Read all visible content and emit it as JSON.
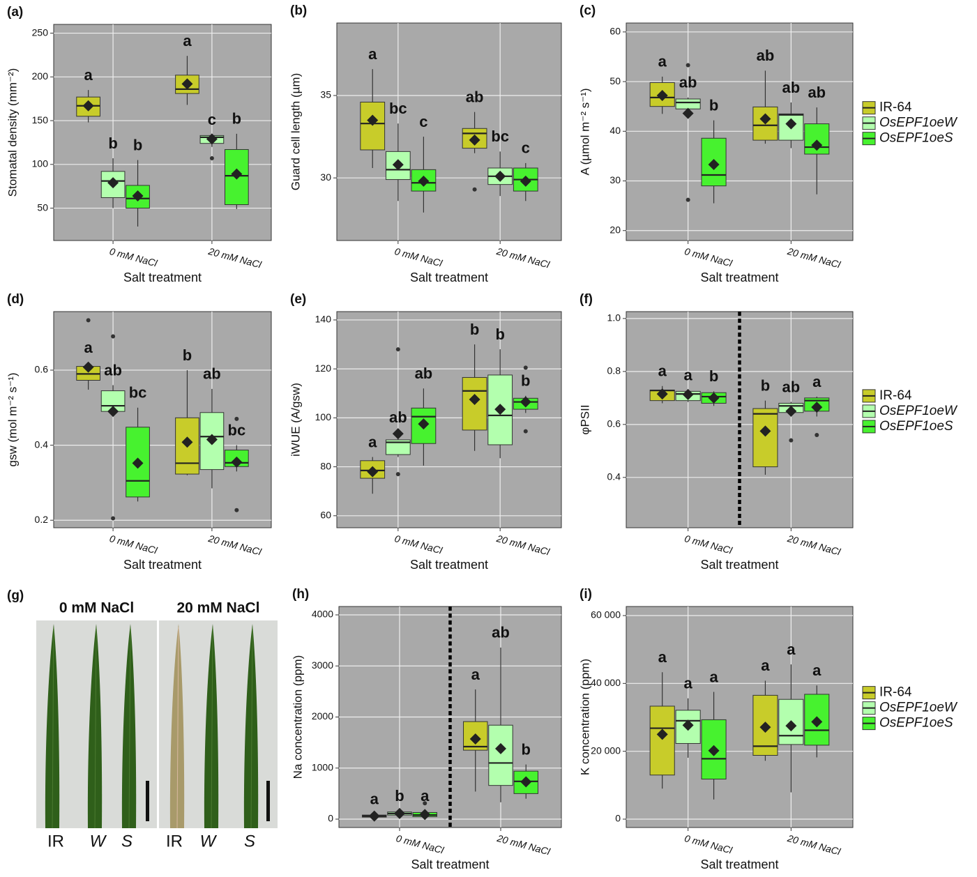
{
  "chart_data": [
    {
      "type": "box",
      "panel": "(a)",
      "ylabel": "Stomatal density (mm⁻²)",
      "xlabel": "Salt treatment",
      "categories": [
        "0 mM NaCl",
        "20 mM NaCl"
      ],
      "ylim": [
        13,
        260
      ],
      "yticks": [
        50,
        100,
        150,
        200,
        250
      ],
      "grid": true,
      "series": [
        {
          "color": "#c8cc2a",
          "values": [
            {
              "low": 148,
              "q1": 155,
              "median": 167,
              "q3": 177,
              "high": 185,
              "mean": 167,
              "label": "a"
            },
            {
              "low": 168,
              "q1": 181,
              "median": 186,
              "q3": 202,
              "high": 224,
              "mean": 192,
              "label": "a"
            }
          ]
        },
        {
          "color": "#b3ffae",
          "values": [
            {
              "low": 50,
              "q1": 62,
              "median": 81,
              "q3": 92,
              "high": 107,
              "mean": 79,
              "label": "b"
            },
            {
              "low": 120,
              "q1": 124,
              "median": 131,
              "q3": 133,
              "high": 134,
              "mean": 129,
              "outliers": [
                107
              ],
              "label": "c"
            }
          ]
        },
        {
          "color": "#47f22f",
          "values": [
            {
              "low": 29,
              "q1": 50,
              "median": 61,
              "q3": 76,
              "high": 105,
              "mean": 64,
              "label": "b"
            },
            {
              "low": 49,
              "q1": 54,
              "median": 87,
              "q3": 117,
              "high": 135,
              "mean": 89,
              "label": "b"
            }
          ]
        }
      ]
    },
    {
      "type": "box",
      "panel": "(b)",
      "ylabel": "Guard cell length (µm)",
      "xlabel": "Salt treatment",
      "categories": [
        "0 mM NaCl",
        "20 mM NaCl"
      ],
      "ylim": [
        26.2,
        39.4
      ],
      "yticks": [
        30,
        35
      ],
      "grid": true,
      "series": [
        {
          "color": "#c8cc2a",
          "values": [
            {
              "low": 30.6,
              "q1": 31.7,
              "median": 33.3,
              "q3": 34.6,
              "high": 36.6,
              "mean": 33.5,
              "label": "a"
            },
            {
              "low": 31.5,
              "q1": 31.8,
              "median": 32.7,
              "q3": 33.0,
              "high": 34.0,
              "mean": 32.3,
              "outliers": [
                29.3
              ],
              "label": "ab"
            }
          ]
        },
        {
          "color": "#b3ffae",
          "values": [
            {
              "low": 28.6,
              "q1": 29.9,
              "median": 30.5,
              "q3": 31.6,
              "high": 33.3,
              "mean": 30.8,
              "label": "bc"
            },
            {
              "low": 28.9,
              "q1": 29.6,
              "median": 30.1,
              "q3": 30.6,
              "high": 31.6,
              "mean": 30.1,
              "label": "bc"
            }
          ]
        },
        {
          "color": "#47f22f",
          "values": [
            {
              "low": 27.9,
              "q1": 29.2,
              "median": 29.7,
              "q3": 30.5,
              "high": 32.5,
              "mean": 29.8,
              "label": "c"
            },
            {
              "low": 28.6,
              "q1": 29.2,
              "median": 29.9,
              "q3": 30.6,
              "high": 30.9,
              "mean": 29.8,
              "label": "c"
            }
          ]
        }
      ]
    },
    {
      "type": "box",
      "panel": "(c)",
      "ylabel": "A (µmol m⁻² s⁻¹)",
      "xlabel": "Salt treatment",
      "categories": [
        "0 mM NaCl",
        "20 mM NaCl"
      ],
      "ylim": [
        18,
        61.8
      ],
      "yticks": [
        20,
        30,
        40,
        50,
        60
      ],
      "grid": true,
      "legend": "right",
      "series": [
        {
          "name": "IR-64",
          "color": "#c8cc2a",
          "values": [
            {
              "low": 43.5,
              "q1": 45,
              "median": 46.8,
              "q3": 49.8,
              "high": 51,
              "mean": 47.2,
              "label": "a"
            },
            {
              "low": 37.5,
              "q1": 38.2,
              "median": 41.2,
              "q3": 44.9,
              "high": 52.2,
              "mean": 42.5,
              "label": "ab"
            }
          ]
        },
        {
          "name": "OsEPF1oeW",
          "color": "#b3ffae",
          "values": [
            {
              "low": 43,
              "q1": 44.5,
              "median": 45.8,
              "q3": 46.5,
              "high": 46.8,
              "mean": 43.6,
              "outliers": [
                53.3,
                26.2
              ],
              "label": "ab"
            },
            {
              "low": 36.6,
              "q1": 38.2,
              "median": 43.3,
              "q3": 43.5,
              "high": 45.8,
              "mean": 41.5,
              "label": "ab"
            }
          ]
        },
        {
          "name": "OsEPF1oeS",
          "color": "#47f22f",
          "values": [
            {
              "low": 25.5,
              "q1": 29,
              "median": 31.2,
              "q3": 38.6,
              "high": 42.2,
              "mean": 33.3,
              "label": "b"
            },
            {
              "low": 27.3,
              "q1": 35.4,
              "median": 36.8,
              "q3": 41.5,
              "high": 44.8,
              "mean": 37.2,
              "label": "ab"
            }
          ]
        }
      ]
    },
    {
      "type": "box",
      "panel": "(d)",
      "ylabel": "gsw (mol m⁻² s⁻¹)",
      "xlabel": "Salt treatment",
      "categories": [
        "0 mM NaCl",
        "20 mM NaCl"
      ],
      "ylim": [
        0.18,
        0.756
      ],
      "yticks": [
        0.2,
        0.4,
        0.6
      ],
      "grid": true,
      "series": [
        {
          "color": "#c8cc2a",
          "values": [
            {
              "low": 0.548,
              "q1": 0.573,
              "median": 0.59,
              "q3": 0.61,
              "high": 0.62,
              "mean": 0.608,
              "outliers": [
                0.733
              ],
              "label": "a"
            },
            {
              "low": 0.32,
              "q1": 0.323,
              "median": 0.352,
              "q3": 0.473,
              "high": 0.6,
              "mean": 0.408,
              "label": "b"
            }
          ]
        },
        {
          "color": "#b3ffae",
          "values": [
            {
              "low": 0.485,
              "q1": 0.49,
              "median": 0.505,
              "q3": 0.545,
              "high": 0.56,
              "mean": 0.49,
              "outliers": [
                0.69,
                0.205
              ],
              "label": "ab"
            },
            {
              "low": 0.285,
              "q1": 0.335,
              "median": 0.423,
              "q3": 0.487,
              "high": 0.55,
              "mean": 0.415,
              "label": "ab"
            }
          ]
        },
        {
          "color": "#47f22f",
          "values": [
            {
              "low": 0.25,
              "q1": 0.262,
              "median": 0.305,
              "q3": 0.448,
              "high": 0.5,
              "mean": 0.352,
              "label": "bc"
            },
            {
              "low": 0.33,
              "q1": 0.343,
              "median": 0.353,
              "q3": 0.387,
              "high": 0.4,
              "mean": 0.355,
              "outliers": [
                0.47,
                0.227
              ],
              "label": "bc"
            }
          ]
        }
      ]
    },
    {
      "type": "box",
      "panel": "(e)",
      "ylabel": "iWUE (A/gsw)",
      "xlabel": "Salt treatment",
      "categories": [
        "0 mM NaCl",
        "20 mM NaCl"
      ],
      "ylim": [
        55.1,
        143.4
      ],
      "yticks": [
        60,
        80,
        100,
        120,
        140
      ],
      "grid": true,
      "series": [
        {
          "color": "#c8cc2a",
          "values": [
            {
              "low": 69,
              "q1": 75.3,
              "median": 78.5,
              "q3": 82.5,
              "high": 84,
              "mean": 78,
              "label": "a"
            },
            {
              "low": 86.5,
              "q1": 95,
              "median": 111,
              "q3": 116.5,
              "high": 130,
              "mean": 107.5,
              "label": "b"
            }
          ]
        },
        {
          "color": "#b3ffae",
          "values": [
            {
              "low": 84,
              "q1": 85,
              "median": 90,
              "q3": 91,
              "high": 94,
              "mean": 93.5,
              "outliers": [
                128,
                77
              ],
              "label": "ab"
            },
            {
              "low": 83.5,
              "q1": 89,
              "median": 101,
              "q3": 117.5,
              "high": 128,
              "mean": 103.5,
              "label": "b"
            }
          ]
        },
        {
          "color": "#47f22f",
          "values": [
            {
              "low": 80.5,
              "q1": 89.5,
              "median": 100.5,
              "q3": 104,
              "high": 112,
              "mean": 97.5,
              "label": "ab"
            },
            {
              "low": 102,
              "q1": 103.5,
              "median": 106.5,
              "q3": 108,
              "high": 109,
              "mean": 106.5,
              "outliers": [
                120.5,
                94.5
              ],
              "label": "b"
            }
          ]
        }
      ]
    },
    {
      "type": "box",
      "panel": "(f)",
      "ylabel": "φPSII",
      "xlabel": "Salt treatment",
      "categories": [
        "0 mM NaCl",
        "20 mM NaCl"
      ],
      "ylim": [
        0.21,
        1.026
      ],
      "yticks": [
        0.4,
        0.6,
        0.8,
        {
          "value": 1.0,
          "label": "1.0"
        }
      ],
      "grid": true,
      "legend": "right",
      "divider": true,
      "series": [
        {
          "name": "IR-64",
          "color": "#c8cc2a",
          "values": [
            {
              "low": 0.68,
              "q1": 0.69,
              "median": 0.728,
              "q3": 0.73,
              "high": 0.745,
              "mean": 0.715,
              "label": "a"
            },
            {
              "low": 0.41,
              "q1": 0.44,
              "median": 0.64,
              "q3": 0.66,
              "high": 0.69,
              "mean": 0.575,
              "label": "b"
            }
          ]
        },
        {
          "name": "OsEPF1oeW",
          "color": "#b3ffae",
          "values": [
            {
              "low": 0.685,
              "q1": 0.69,
              "median": 0.715,
              "q3": 0.725,
              "high": 0.73,
              "mean": 0.713,
              "label": "a"
            },
            {
              "low": 0.63,
              "q1": 0.645,
              "median": 0.67,
              "q3": 0.68,
              "high": 0.685,
              "mean": 0.65,
              "outliers": [
                0.54
              ],
              "label": "ab"
            }
          ]
        },
        {
          "name": "OsEPF1oeS",
          "color": "#47f22f",
          "values": [
            {
              "low": 0.67,
              "q1": 0.68,
              "median": 0.705,
              "q3": 0.72,
              "high": 0.725,
              "mean": 0.7,
              "label": "b"
            },
            {
              "low": 0.63,
              "q1": 0.65,
              "median": 0.69,
              "q3": 0.7,
              "high": 0.705,
              "mean": 0.665,
              "outliers": [
                0.56
              ],
              "label": "a"
            }
          ]
        }
      ]
    },
    {
      "type": "box",
      "panel": "(h)",
      "ylabel": "Na concentration (ppm)",
      "xlabel": "Salt treatment",
      "categories": [
        "0 mM NaCl",
        "20 mM NaCl"
      ],
      "ylim": [
        -164,
        4164
      ],
      "yticks": [
        0,
        1000,
        2000,
        3000,
        4000
      ],
      "grid": true,
      "divider": true,
      "series": [
        {
          "color": "#c8cc2a",
          "values": [
            {
              "low": 20,
              "q1": 40,
              "median": 60,
              "q3": 80,
              "high": 100,
              "mean": 60,
              "label": "a"
            },
            {
              "low": 540,
              "q1": 1350,
              "median": 1420,
              "q3": 1910,
              "high": 2540,
              "mean": 1570,
              "label": "a"
            }
          ]
        },
        {
          "color": "#b3ffae",
          "values": [
            {
              "low": 60,
              "q1": 80,
              "median": 110,
              "q3": 140,
              "high": 160,
              "mean": 110,
              "label": "b"
            },
            {
              "low": 330,
              "q1": 660,
              "median": 1100,
              "q3": 1840,
              "high": 3360,
              "mean": 1380,
              "label": "ab"
            }
          ]
        },
        {
          "color": "#47f22f",
          "values": [
            {
              "low": 20,
              "q1": 50,
              "median": 80,
              "q3": 130,
              "high": 160,
              "mean": 90,
              "outliers": [
                310
              ],
              "label": "a"
            },
            {
              "low": 400,
              "q1": 500,
              "median": 740,
              "q3": 940,
              "high": 1070,
              "mean": 730,
              "label": "b"
            }
          ]
        }
      ]
    },
    {
      "type": "box",
      "panel": "(i)",
      "ylabel": "K concentration (ppm)",
      "xlabel": "Salt treatment",
      "categories": [
        "0 mM NaCl",
        "20 mM NaCl"
      ],
      "ylim": [
        -2465,
        62670
      ],
      "yticks": [
        0,
        {
          "value": 20000,
          "label": "20 000"
        },
        {
          "value": 40000,
          "label": "40 000"
        },
        {
          "value": 60000,
          "label": "60 000"
        }
      ],
      "grid": true,
      "legend": "right",
      "series": [
        {
          "name": "IR-64",
          "color": "#c8cc2a",
          "values": [
            {
              "low": 9000,
              "q1": 13000,
              "median": 26800,
              "q3": 33300,
              "high": 43300,
              "mean": 25000,
              "label": "a"
            },
            {
              "low": 17200,
              "q1": 18800,
              "median": 21500,
              "q3": 36500,
              "high": 40800,
              "mean": 27100,
              "label": "a"
            }
          ]
        },
        {
          "name": "OsEPF1oeW",
          "color": "#b3ffae",
          "values": [
            {
              "low": 18100,
              "q1": 22300,
              "median": 29000,
              "q3": 32100,
              "high": 35600,
              "mean": 27700,
              "label": "a"
            },
            {
              "low": 7900,
              "q1": 22000,
              "median": 24600,
              "q3": 35300,
              "high": 45600,
              "mean": 27500,
              "label": "a"
            }
          ]
        },
        {
          "name": "OsEPF1oeS",
          "color": "#47f22f",
          "values": [
            {
              "low": 5800,
              "q1": 11800,
              "median": 17800,
              "q3": 29300,
              "high": 37500,
              "mean": 20200,
              "label": "a"
            },
            {
              "low": 18200,
              "q1": 21800,
              "median": 26200,
              "q3": 36800,
              "high": 39400,
              "mean": 28700,
              "label": "a"
            }
          ]
        }
      ]
    }
  ],
  "photo_panel": {
    "panel": "(g)",
    "conditions": [
      "0 mM NaCl",
      "20 mM NaCl"
    ],
    "leaf_labels": [
      "IR",
      "W",
      "S",
      "IR",
      "W",
      "S"
    ]
  }
}
